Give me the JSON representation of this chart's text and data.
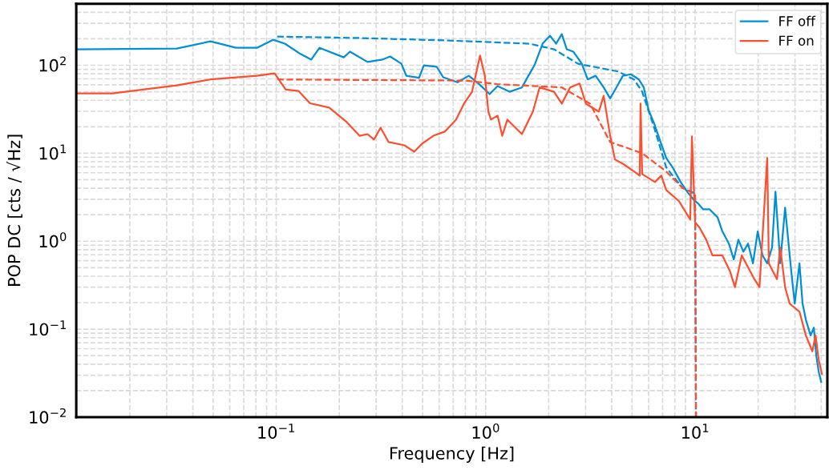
{
  "chart_data": {
    "type": "line",
    "xlabel": "Frequency [Hz]",
    "ylabel": "POP DC [cts / √Hz]",
    "log": "xy",
    "grid": true,
    "legend": "top right",
    "marker": "none",
    "xlim": [
      0.0111,
      42.8
    ],
    "ylim": [
      0.01,
      500
    ],
    "xticks": [
      {
        "value": 0.1,
        "label": "10$^{−1}$"
      },
      {
        "value": 1,
        "label": "10$^{0}$"
      },
      {
        "value": 10,
        "label": "10$^{1}$"
      }
    ],
    "yticks": [
      {
        "value": 0.01,
        "label": "10$^{−2}$"
      },
      {
        "value": 0.1,
        "label": "10$^{−1}$"
      },
      {
        "value": 1,
        "label": "10$^{0}$"
      },
      {
        "value": 10,
        "label": "10$^{1}$"
      },
      {
        "value": 100,
        "label": "10$^{2}$"
      }
    ],
    "series": [
      {
        "name": "FF off",
        "color": "#008fd5",
        "line_style": "solid",
        "x": [
          0.0111,
          0.0335,
          0.0485,
          0.0643,
          0.081,
          0.0966,
          0.11,
          0.131,
          0.147,
          0.161,
          0.21,
          0.225,
          0.273,
          0.321,
          0.35,
          0.396,
          0.418,
          0.481,
          0.507,
          0.584,
          0.627,
          0.734,
          0.831,
          0.924,
          1.045,
          1.14,
          1.3,
          1.49,
          1.6,
          1.71,
          1.87,
          2.03,
          2.17,
          2.31,
          2.44,
          2.62,
          2.88,
          3.07,
          3.35,
          3.66,
          3.93,
          4.21,
          4.52,
          4.94,
          5.39,
          5.69,
          6.0,
          6.38,
          6.84,
          7.28,
          7.81,
          8.53,
          9.16,
          9.83,
          10.36,
          10.9,
          11.7,
          12.8,
          13.5,
          14.5,
          15.3,
          16.1,
          17.0,
          17.9,
          18.9,
          19.9,
          21.0,
          22.1,
          23.3,
          24.2,
          25.5,
          26.9,
          28.8,
          29.9,
          31.5,
          32.6,
          33.8,
          35.6,
          36.9,
          37.9,
          38.9,
          40.0
        ],
        "values": [
          152,
          155,
          187,
          158,
          158,
          195,
          176,
          134,
          116,
          158,
          123,
          143,
          109,
          116,
          126,
          104,
          76,
          72,
          100,
          96,
          73,
          64,
          76,
          62,
          47,
          58,
          50,
          56,
          76,
          100,
          176,
          217,
          176,
          226,
          152,
          143,
          104,
          69,
          76,
          56,
          42,
          56,
          76,
          79,
          69,
          56,
          31,
          21.7,
          13.4,
          8.8,
          6.9,
          4.7,
          3.66,
          2.97,
          2.67,
          2.31,
          2.31,
          1.87,
          1.29,
          0.94,
          0.62,
          1.04,
          0.76,
          0.94,
          0.56,
          1.29,
          0.69,
          0.56,
          0.85,
          3.66,
          0.56,
          2.41,
          0.45,
          0.195,
          0.56,
          0.195,
          0.128,
          0.085,
          0.104,
          0.05,
          0.033,
          0.025
        ]
      },
      {
        "name": "FF on",
        "color": "#fc4f30",
        "line_style": "solid",
        "x": [
          0.0111,
          0.0165,
          0.0335,
          0.0485,
          0.081,
          0.0983,
          0.111,
          0.128,
          0.145,
          0.179,
          0.217,
          0.25,
          0.273,
          0.293,
          0.315,
          0.344,
          0.41,
          0.456,
          0.498,
          0.563,
          0.638,
          0.722,
          0.788,
          0.861,
          0.94,
          0.991,
          1.03,
          1.06,
          1.14,
          1.2,
          1.27,
          1.49,
          1.68,
          1.81,
          2.12,
          2.31,
          2.53,
          2.81,
          3.01,
          3.47,
          3.66,
          3.93,
          4.14,
          4.52,
          5.11,
          5.44,
          5.49,
          5.59,
          6.43,
          6.9,
          7.28,
          8.38,
          9.48,
          9.66,
          10.0,
          10.5,
          11.3,
          12.1,
          13.5,
          14.7,
          15.5,
          16.7,
          19.2,
          20.3,
          22.1,
          22.5,
          24.6,
          25.5,
          26.9,
          28.3,
          31.5,
          33.8,
          36.3,
          37.6,
          38.9,
          40.3
        ],
        "values": [
          48,
          48,
          59,
          69,
          76,
          81,
          53,
          51,
          37,
          33,
          22.6,
          15.8,
          16.5,
          14.3,
          19.5,
          13.4,
          12.3,
          10.4,
          12.9,
          15.8,
          17.6,
          24.1,
          36.6,
          50,
          129,
          76,
          29.7,
          24.1,
          26.8,
          15.8,
          24.1,
          16.5,
          29.7,
          56,
          50,
          36.6,
          56,
          62,
          36.6,
          29.7,
          45,
          15.8,
          8.5,
          7.6,
          6.2,
          5.56,
          36.6,
          5.8,
          4.7,
          5.56,
          3.82,
          2.85,
          1.76,
          15.5,
          1.65,
          1.43,
          1.04,
          0.69,
          0.69,
          0.45,
          0.3,
          0.69,
          0.37,
          0.3,
          8.8,
          0.56,
          0.37,
          0.85,
          0.3,
          0.195,
          0.158,
          0.085,
          0.056,
          0.085,
          0.045,
          0.031
        ]
      },
      {
        "color": "#008fd5",
        "line_style": "dashed",
        "x": [
          0.101,
          0.255,
          0.672,
          1.62,
          2.12,
          2.76,
          4.29,
          5.11,
          5.59,
          6.38,
          7.28,
          8.68,
          10.0,
          10.1
        ],
        "values": [
          212,
          204,
          191,
          176,
          152,
          104,
          85,
          69,
          50,
          19.5,
          6.9,
          4.06,
          3.51,
          0.01
        ]
      },
      {
        "color": "#fc4f30",
        "line_style": "dashed",
        "x": [
          0.101,
          0.802,
          1.14,
          2.31,
          3.15,
          3.93,
          5.59,
          7.28,
          8.68,
          10.0,
          10.1
        ],
        "values": [
          69,
          67,
          61,
          56,
          36.6,
          13.4,
          10.0,
          6.2,
          4.06,
          3.44,
          0.01
        ]
      }
    ]
  }
}
